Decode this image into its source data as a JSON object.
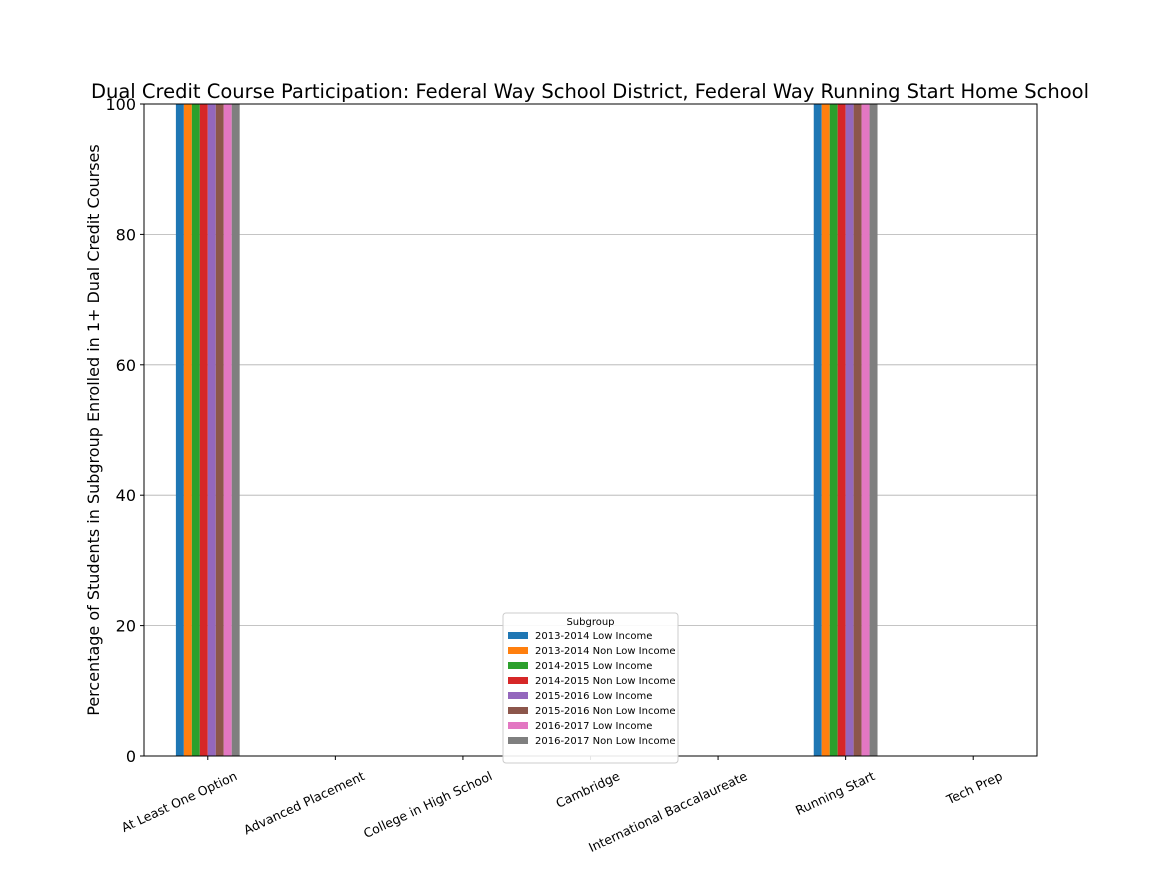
{
  "chart_data": {
    "type": "bar",
    "title": "Dual Credit Course Participation: Federal Way School District, Federal Way Running Start Home School",
    "xlabel": "",
    "ylabel": "Percentage of Students in Subgroup Enrolled in 1+ Dual Credit Courses",
    "ylim": [
      0,
      100
    ],
    "yticks": [
      "0",
      "20",
      "40",
      "60",
      "80",
      "100"
    ],
    "grid": "y-major",
    "legend_title": "Subgroup",
    "legend_position": "lower-center",
    "categories": [
      "At Least One Option",
      "Advanced Placement",
      "College in High School",
      "Cambridge",
      "International Baccalaureate",
      "Running Start",
      "Tech Prep"
    ],
    "series": [
      {
        "name": "2013-2014 Low Income",
        "color": "#1f77b4",
        "values": [
          100,
          0,
          0,
          0,
          0,
          100,
          0
        ]
      },
      {
        "name": "2013-2014 Non Low Income",
        "color": "#ff7f0e",
        "values": [
          100,
          0,
          0,
          0,
          0,
          100,
          0
        ]
      },
      {
        "name": "2014-2015 Low Income",
        "color": "#2ca02c",
        "values": [
          100,
          0,
          0,
          0,
          0,
          100,
          0
        ]
      },
      {
        "name": "2014-2015 Non Low Income",
        "color": "#d62728",
        "values": [
          100,
          0,
          0,
          0,
          0,
          100,
          0
        ]
      },
      {
        "name": "2015-2016 Low Income",
        "color": "#9467bd",
        "values": [
          100,
          0,
          0,
          0,
          0,
          100,
          0
        ]
      },
      {
        "name": "2015-2016 Non Low Income",
        "color": "#8c564b",
        "values": [
          100,
          0,
          0,
          0,
          0,
          100,
          0
        ]
      },
      {
        "name": "2016-2017 Low Income",
        "color": "#e377c2",
        "values": [
          100,
          0,
          0,
          0,
          0,
          100,
          0
        ]
      },
      {
        "name": "2016-2017 Non Low Income",
        "color": "#7f7f7f",
        "values": [
          100,
          0,
          0,
          0,
          0,
          100,
          0
        ]
      }
    ]
  }
}
